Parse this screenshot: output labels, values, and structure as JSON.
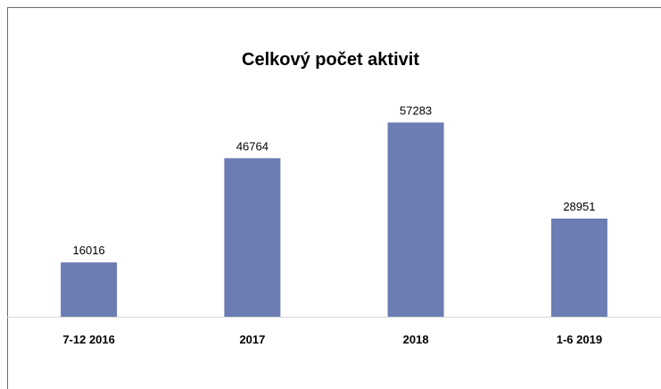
{
  "chart_data": {
    "type": "bar",
    "title": "Celkový počet aktivit",
    "categories": [
      "7-12 2016",
      "2017",
      "2018",
      "1-6 2019"
    ],
    "values": [
      16016,
      46764,
      57283,
      28951
    ],
    "xlabel": "",
    "ylabel": "",
    "ylim": [
      0,
      60000
    ],
    "grid": false,
    "legend": "none",
    "bar_color": "#6b7db3"
  }
}
